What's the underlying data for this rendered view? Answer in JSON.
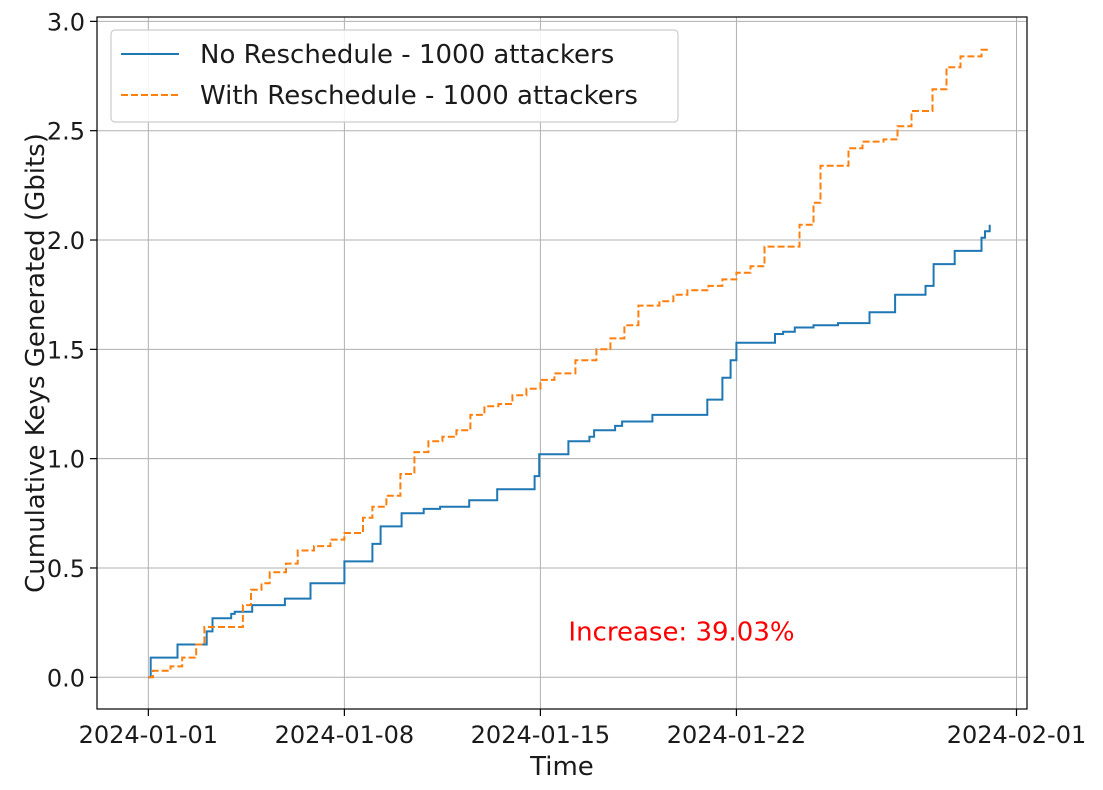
{
  "chart_data": {
    "type": "line",
    "title": "",
    "xlabel": "Time",
    "ylabel": "Cumulative Keys Generated (Gbits)",
    "xlim": [
      "2023-12-30T04:00",
      "2024-02-01T09:00"
    ],
    "ylim": [
      -0.145,
      3.02
    ],
    "x_ticks": [
      "2024-01-01",
      "2024-01-08",
      "2024-01-15",
      "2024-01-22",
      "2024-02-01"
    ],
    "y_ticks": [
      "0.0",
      "0.5",
      "1.0",
      "1.5",
      "2.0",
      "2.5",
      "3.0"
    ],
    "y_tick_values": [
      0,
      0.5,
      1.0,
      1.5,
      2.0,
      2.5,
      3.0
    ],
    "grid": true,
    "legend_position": "top-left",
    "step": true,
    "annotation": {
      "text": "Increase: 39.03%",
      "x": "2024-01-16T00:00",
      "y": 0.21,
      "color": "#ff0000"
    },
    "series": [
      {
        "name": "No Reschedule - 1000 attackers",
        "color": "#1f77b4",
        "style": "solid",
        "x": [
          "2024-01-01T00:00",
          "2024-01-01T02:00",
          "2024-01-01T20:00",
          "2024-01-02T01:00",
          "2024-01-02T19:00",
          "2024-01-03T02:00",
          "2024-01-03T07:00",
          "2024-01-03T20:00",
          "2024-01-03T23:00",
          "2024-01-04T02:00",
          "2024-01-04T08:00",
          "2024-01-04T17:00",
          "2024-01-05T03:00",
          "2024-01-05T21:00",
          "2024-01-06T00:00",
          "2024-01-06T19:00",
          "2024-01-07T19:00",
          "2024-01-08T00:00",
          "2024-01-08T18:00",
          "2024-01-09T00:00",
          "2024-01-09T07:00",
          "2024-01-09T17:00",
          "2024-01-10T01:00",
          "2024-01-10T20:00",
          "2024-01-11T00:00",
          "2024-01-11T10:00",
          "2024-01-11T20:00",
          "2024-01-12T11:00",
          "2024-01-12T14:00",
          "2024-01-13T11:00",
          "2024-01-14T12:00",
          "2024-01-14T19:00",
          "2024-01-14T23:00",
          "2024-01-15T20:00",
          "2024-01-16T00:00",
          "2024-01-16T18:00",
          "2024-01-16T22:00",
          "2024-01-17T16:00",
          "2024-01-17T22:00",
          "2024-01-19T00:00",
          "2024-01-20T23:00",
          "2024-01-21T12:00",
          "2024-01-21T19:00",
          "2024-01-22T00:00",
          "2024-01-22T18:00",
          "2024-01-23T09:00",
          "2024-01-23T16:00",
          "2024-01-24T02:00",
          "2024-01-24T18:00",
          "2024-01-25T02:00",
          "2024-01-25T15:00",
          "2024-01-26T02:00",
          "2024-01-26T18:00",
          "2024-01-27T16:00",
          "2024-01-27T20:00",
          "2024-01-28T18:00",
          "2024-01-29T01:00",
          "2024-01-29T19:00",
          "2024-01-30T18:00",
          "2024-01-30T21:00",
          "2024-01-31T01:00"
        ],
        "values": [
          0,
          0.09,
          0.09,
          0.15,
          0.15,
          0.21,
          0.27,
          0.27,
          0.29,
          0.3,
          0.3,
          0.33,
          0.33,
          0.36,
          0.36,
          0.43,
          0.43,
          0.53,
          0.53,
          0.61,
          0.69,
          0.69,
          0.75,
          0.77,
          0.77,
          0.78,
          0.78,
          0.81,
          0.81,
          0.86,
          0.86,
          0.92,
          1.02,
          1.02,
          1.08,
          1.1,
          1.13,
          1.15,
          1.17,
          1.2,
          1.27,
          1.37,
          1.45,
          1.53,
          1.53,
          1.57,
          1.58,
          1.6,
          1.61,
          1.61,
          1.62,
          1.62,
          1.67,
          1.75,
          1.75,
          1.79,
          1.89,
          1.95,
          2.01,
          2.04,
          2.07
        ]
      },
      {
        "name": "With Reschedule - 1000 attackers",
        "color": "#ff7f0e",
        "style": "dashed",
        "x": [
          "2024-01-01T00:00",
          "2024-01-01T04:00",
          "2024-01-01T19:00",
          "2024-01-02T05:00",
          "2024-01-02T17:00",
          "2024-01-03T00:00",
          "2024-01-03T05:00",
          "2024-01-04T09:00",
          "2024-01-04T16:00",
          "2024-01-05T01:00",
          "2024-01-05T08:00",
          "2024-01-05T22:00",
          "2024-01-06T08:00",
          "2024-01-06T22:00",
          "2024-01-07T12:00",
          "2024-01-08T00:00",
          "2024-01-08T16:00",
          "2024-01-09T00:00",
          "2024-01-09T12:00",
          "2024-01-10T00:00",
          "2024-01-10T12:00",
          "2024-01-11T00:00",
          "2024-01-11T12:00",
          "2024-01-12T00:00",
          "2024-01-12T12:00",
          "2024-01-13T00:00",
          "2024-01-13T12:00",
          "2024-01-14T00:00",
          "2024-01-14T12:00",
          "2024-01-15T00:00",
          "2024-01-15T12:00",
          "2024-01-16T06:00",
          "2024-01-17T00:00",
          "2024-01-17T12:00",
          "2024-01-18T00:00",
          "2024-01-18T12:00",
          "2024-01-19T06:00",
          "2024-01-19T18:00",
          "2024-01-20T06:00",
          "2024-01-21T00:00",
          "2024-01-21T12:00",
          "2024-01-22T00:00",
          "2024-01-22T12:00",
          "2024-01-23T00:00",
          "2024-01-23T12:00",
          "2024-01-24T06:00",
          "2024-01-24T18:00",
          "2024-01-25T00:00",
          "2024-01-26T00:00",
          "2024-01-26T12:00",
          "2024-01-27T06:00",
          "2024-01-27T18:00",
          "2024-01-28T06:00",
          "2024-01-29T00:00",
          "2024-01-29T12:00",
          "2024-01-30T00:00",
          "2024-01-30T18:00",
          "2024-01-31T00:00"
        ],
        "values": [
          0,
          0.03,
          0.05,
          0.09,
          0.15,
          0.23,
          0.23,
          0.33,
          0.4,
          0.43,
          0.48,
          0.52,
          0.58,
          0.6,
          0.63,
          0.66,
          0.73,
          0.78,
          0.83,
          0.93,
          1.03,
          1.08,
          1.1,
          1.13,
          1.2,
          1.24,
          1.25,
          1.29,
          1.32,
          1.36,
          1.39,
          1.45,
          1.5,
          1.55,
          1.61,
          1.7,
          1.72,
          1.75,
          1.77,
          1.79,
          1.82,
          1.85,
          1.88,
          1.97,
          1.97,
          2.07,
          2.17,
          2.34,
          2.42,
          2.45,
          2.46,
          2.52,
          2.59,
          2.69,
          2.79,
          2.84,
          2.87,
          2.88
        ]
      }
    ]
  }
}
